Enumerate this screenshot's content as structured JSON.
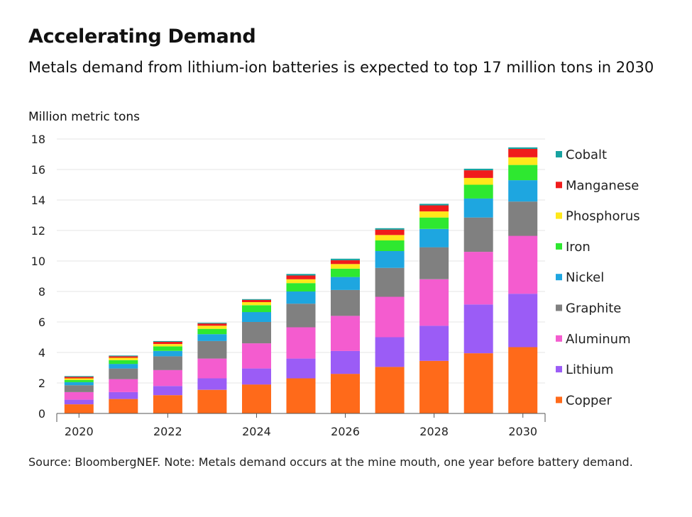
{
  "header": {
    "title": "Accelerating Demand",
    "subtitle": "Metals demand from lithium-ion batteries is expected to top 17 million tons in 2030"
  },
  "footer": {
    "source": "Source: BloombergNEF. Note: Metals demand occurs at the mine mouth, one year before battery demand."
  },
  "chart_data": {
    "type": "bar",
    "stacked": true,
    "ylabel": "Million metric tons",
    "ylim": [
      0,
      18
    ],
    "yticks": [
      0,
      2,
      4,
      6,
      8,
      10,
      12,
      14,
      16,
      18
    ],
    "categories": [
      "2020",
      "2021",
      "2022",
      "2023",
      "2024",
      "2025",
      "2026",
      "2027",
      "2028",
      "2029",
      "2030"
    ],
    "xtick_labels": [
      "2020",
      "",
      "2022",
      "",
      "2024",
      "",
      "2026",
      "",
      "2028",
      "",
      "2030"
    ],
    "grid": true,
    "legend_position": "right",
    "series": [
      {
        "name": "Copper",
        "color": "#ff6a1a",
        "values": [
          0.6,
          0.95,
          1.2,
          1.55,
          1.9,
          2.3,
          2.6,
          3.05,
          3.45,
          3.95,
          4.35
        ]
      },
      {
        "name": "Lithium",
        "color": "#9b5cf6",
        "values": [
          0.3,
          0.45,
          0.6,
          0.75,
          1.05,
          1.3,
          1.5,
          1.95,
          2.3,
          3.2,
          3.5
        ]
      },
      {
        "name": "Aluminum",
        "color": "#f45ccf",
        "values": [
          0.5,
          0.85,
          1.05,
          1.3,
          1.65,
          2.05,
          2.3,
          2.65,
          3.05,
          3.45,
          3.8
        ]
      },
      {
        "name": "Graphite",
        "color": "#808080",
        "values": [
          0.45,
          0.7,
          0.9,
          1.15,
          1.4,
          1.55,
          1.7,
          1.9,
          2.1,
          2.25,
          2.25
        ]
      },
      {
        "name": "Nickel",
        "color": "#1ea6e0",
        "values": [
          0.2,
          0.3,
          0.35,
          0.45,
          0.65,
          0.8,
          0.85,
          1.1,
          1.2,
          1.25,
          1.4
        ]
      },
      {
        "name": "Iron",
        "color": "#2ee830",
        "values": [
          0.15,
          0.25,
          0.3,
          0.35,
          0.45,
          0.55,
          0.55,
          0.7,
          0.75,
          0.9,
          1.0
        ]
      },
      {
        "name": "Phosphorus",
        "color": "#ffe81a",
        "values": [
          0.1,
          0.15,
          0.15,
          0.2,
          0.2,
          0.25,
          0.3,
          0.35,
          0.4,
          0.45,
          0.5
        ]
      },
      {
        "name": "Manganese",
        "color": "#f01c1c",
        "values": [
          0.1,
          0.1,
          0.15,
          0.15,
          0.15,
          0.25,
          0.25,
          0.35,
          0.4,
          0.5,
          0.55
        ]
      },
      {
        "name": "Cobalt",
        "color": "#17a2a0",
        "values": [
          0.05,
          0.05,
          0.05,
          0.05,
          0.05,
          0.1,
          0.1,
          0.1,
          0.1,
          0.1,
          0.1
        ]
      }
    ]
  }
}
